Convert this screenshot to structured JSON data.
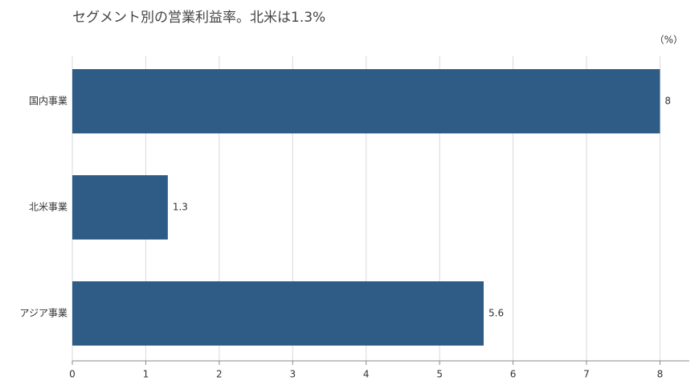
{
  "chart_data": {
    "type": "bar",
    "orientation": "horizontal",
    "title": "セグメント別の営業利益率。北米は1.3%",
    "unit_label": "（%）",
    "categories": [
      "国内事業",
      "北米事業",
      "アジア事業"
    ],
    "values": [
      8,
      1.3,
      5.6
    ],
    "color": "#2e5c87",
    "xlim": [
      0,
      8.4
    ],
    "xticks": [
      0,
      1,
      2,
      3,
      4,
      5,
      6,
      7,
      8
    ],
    "grid": true
  }
}
